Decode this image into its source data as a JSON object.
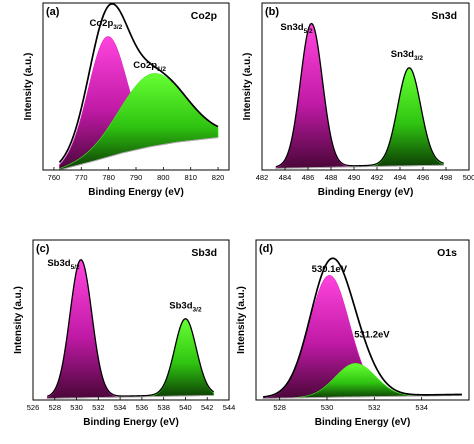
{
  "figure": {
    "colors": {
      "primary_peak": "#e020c8",
      "secondary_peak": "#44ee22",
      "envelope": "#000000",
      "background_line": "#b0a8b0"
    }
  },
  "chart_data": [
    {
      "type": "area",
      "panel_label": "(a)",
      "element_label": "Co2p",
      "xlabel": "Binding Energy (eV)",
      "ylabel": "Intensity (a.u.)",
      "xlim": [
        756,
        824
      ],
      "ylim": [
        0,
        1.08
      ],
      "xticks": [
        760,
        770,
        780,
        790,
        800,
        810,
        820
      ],
      "x_range": [
        762,
        820
      ],
      "envelope_width": 1.7,
      "background": [
        [
          762,
          0.0
        ],
        [
          775,
          0.06
        ],
        [
          785,
          0.11
        ],
        [
          795,
          0.15
        ],
        [
          805,
          0.18
        ],
        [
          820,
          0.21
        ]
      ],
      "peaks": [
        {
          "name": "Co2p3/2",
          "label_main": "Co2p",
          "label_sub": "3/2",
          "label_x": 779,
          "label_y": 0.93,
          "center": 779.5,
          "height": 0.78,
          "width": 7.0,
          "color": "primary"
        },
        {
          "name": "Co2p1/2",
          "label_main": "Co2p",
          "label_sub": "1/2",
          "label_x": 795,
          "label_y": 0.66,
          "center": 796.0,
          "height": 0.47,
          "width": 12.0,
          "color": "secondary"
        }
      ]
    },
    {
      "type": "area",
      "panel_label": "(b)",
      "element_label": "Sn3d",
      "xlabel": "Binding Energy (eV)",
      "ylabel": "Intensity (a.u.)",
      "xlim": [
        482,
        500
      ],
      "ylim": [
        0,
        1.05
      ],
      "xticks": [
        482,
        484,
        486,
        488,
        490,
        492,
        494,
        496,
        498,
        500
      ],
      "x_range": [
        483.2,
        497.8
      ],
      "envelope_width": 1.3,
      "background": [
        [
          483.2,
          0.01
        ],
        [
          490,
          0.02
        ],
        [
          497.8,
          0.03
        ]
      ],
      "peaks": [
        {
          "name": "Sn3d5/2",
          "label_main": "Sn3d",
          "label_sub": "5/2",
          "label_x": 485.0,
          "label_y": 0.88,
          "center": 486.3,
          "height": 0.9,
          "width": 0.95,
          "color": "primary"
        },
        {
          "name": "Sn3d3/2",
          "label_main": "Sn3d",
          "label_sub": "3/2",
          "label_x": 494.6,
          "label_y": 0.71,
          "center": 494.8,
          "height": 0.61,
          "width": 1.0,
          "color": "secondary"
        }
      ]
    },
    {
      "type": "area",
      "panel_label": "(c)",
      "element_label": "Sb3d",
      "xlabel": "Binding Energy (eV)",
      "ylabel": "Intensity (a.u.)",
      "xlim": [
        526,
        544
      ],
      "ylim": [
        0,
        1.05
      ],
      "xticks": [
        526,
        528,
        530,
        532,
        534,
        536,
        538,
        540,
        542,
        544
      ],
      "x_range": [
        527.3,
        542.6
      ],
      "envelope_width": 1.3,
      "background": [
        [
          527.3,
          0.01
        ],
        [
          535,
          0.02
        ],
        [
          542.6,
          0.03
        ]
      ],
      "peaks": [
        {
          "name": "Sb3d5/2",
          "label_main": "Sb3d",
          "label_sub": "5/2",
          "label_x": 528.8,
          "label_y": 0.88,
          "center": 530.4,
          "height": 0.9,
          "width": 1.0,
          "color": "primary"
        },
        {
          "name": "Sb3d3/2",
          "label_main": "Sb3d",
          "label_sub": "3/2",
          "label_x": 540.0,
          "label_y": 0.6,
          "center": 540.0,
          "height": 0.5,
          "width": 1.0,
          "color": "secondary"
        }
      ]
    },
    {
      "type": "area",
      "panel_label": "(d)",
      "element_label": "O1s",
      "xlabel": "Binding Energy (eV)",
      "ylabel": "Intensity (a.u.)",
      "xlim": [
        527,
        536
      ],
      "ylim": [
        0,
        1.05
      ],
      "xticks": [
        528,
        530,
        532,
        534
      ],
      "x_range": [
        527.3,
        535.7
      ],
      "envelope_width": 1.7,
      "background": [
        [
          527.3,
          0.01
        ],
        [
          531,
          0.02
        ],
        [
          535.7,
          0.03
        ]
      ],
      "peaks": [
        {
          "name": "530.1eV",
          "label_main": "530.1eV",
          "label_sub": "",
          "label_x": 530.1,
          "label_y": 0.84,
          "center": 530.1,
          "height": 0.8,
          "width": 0.85,
          "color": "primary"
        },
        {
          "name": "531.2eV",
          "label_main": "531.2eV",
          "label_sub": "",
          "label_x": 531.9,
          "label_y": 0.41,
          "center": 531.2,
          "height": 0.22,
          "width": 0.85,
          "color": "secondary"
        }
      ]
    }
  ]
}
